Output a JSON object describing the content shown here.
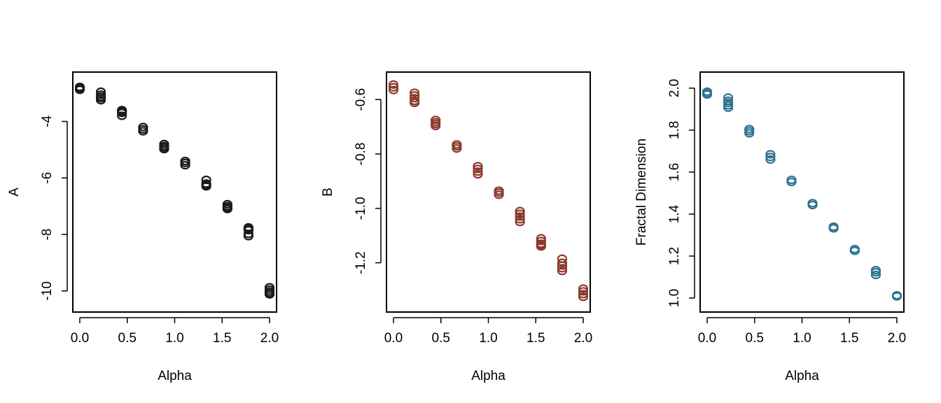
{
  "chart_data": [
    {
      "type": "scatter",
      "xlabel": "Alpha",
      "ylabel": "A",
      "xlim": [
        0,
        2
      ],
      "ylim": [
        -10.4,
        -2.6
      ],
      "xticks": [
        "0.0",
        "0.5",
        "1.0",
        "1.5",
        "2.0"
      ],
      "yticks": [
        "-4",
        "-6",
        "-8",
        "-10"
      ],
      "grid": false,
      "color": "#1a1a1a",
      "series": [
        {
          "x": [
            0,
            0,
            0,
            0.222,
            0.222,
            0.222,
            0.222,
            0.222,
            0.444,
            0.444,
            0.444,
            0.444,
            0.667,
            0.667,
            0.667,
            0.889,
            0.889,
            0.889,
            0.889,
            1.111,
            1.111,
            1.111,
            1.333,
            1.333,
            1.333,
            1.333,
            1.556,
            1.556,
            1.556,
            1.556,
            1.778,
            1.778,
            1.778,
            1.778,
            1.778,
            2,
            2,
            2,
            2,
            2
          ],
          "y": [
            -2.78,
            -2.83,
            -2.88,
            -2.95,
            -3.05,
            -3.12,
            -3.18,
            -3.25,
            -3.6,
            -3.65,
            -3.7,
            -3.8,
            -4.2,
            -4.28,
            -4.35,
            -4.8,
            -4.87,
            -4.92,
            -4.98,
            -5.4,
            -5.47,
            -5.55,
            -6.07,
            -6.2,
            -6.25,
            -6.3,
            -6.93,
            -7.0,
            -7.05,
            -7.1,
            -7.75,
            -7.8,
            -7.85,
            -7.98,
            -8.06,
            -9.87,
            -9.95,
            -10.02,
            -10.08,
            -10.12
          ]
        }
      ]
    },
    {
      "type": "scatter",
      "xlabel": "Alpha",
      "ylabel": "B",
      "xlim": [
        0,
        2
      ],
      "ylim": [
        -1.345,
        -0.535
      ],
      "xticks": [
        "0.0",
        "0.5",
        "1.0",
        "1.5",
        "2.0"
      ],
      "yticks": [
        "-0.6",
        "-0.8",
        "-1.0",
        "-1.2"
      ],
      "grid": false,
      "color": "#8c3a2a",
      "series": [
        {
          "x": [
            0,
            0,
            0,
            0.222,
            0.222,
            0.222,
            0.222,
            0.222,
            0.444,
            0.444,
            0.444,
            0.444,
            0.667,
            0.667,
            0.667,
            0.889,
            0.889,
            0.889,
            0.889,
            1.111,
            1.111,
            1.111,
            1.333,
            1.333,
            1.333,
            1.333,
            1.333,
            1.556,
            1.556,
            1.556,
            1.556,
            1.556,
            1.778,
            1.778,
            1.778,
            1.778,
            1.778,
            2,
            2,
            2,
            2
          ],
          "y": [
            -0.545,
            -0.555,
            -0.565,
            -0.575,
            -0.585,
            -0.595,
            -0.605,
            -0.612,
            -0.675,
            -0.683,
            -0.69,
            -0.697,
            -0.765,
            -0.772,
            -0.78,
            -0.845,
            -0.855,
            -0.865,
            -0.875,
            -0.935,
            -0.942,
            -0.95,
            -1.01,
            -1.02,
            -1.03,
            -1.04,
            -1.05,
            -1.11,
            -1.12,
            -1.13,
            -1.135,
            -1.14,
            -1.185,
            -1.2,
            -1.21,
            -1.22,
            -1.23,
            -1.295,
            -1.305,
            -1.315,
            -1.325
          ]
        }
      ]
    },
    {
      "type": "scatter",
      "xlabel": "Alpha",
      "ylabel": "Fractal Dimension",
      "xlim": [
        0,
        2
      ],
      "ylim": [
        0.98,
        2.03
      ],
      "xticks": [
        "0.0",
        "0.5",
        "1.0",
        "1.5",
        "2.0"
      ],
      "yticks": [
        "1.0",
        "1.2",
        "1.4",
        "1.6",
        "1.8",
        "2.0"
      ],
      "grid": false,
      "color": "#2e7391",
      "series": [
        {
          "x": [
            0,
            0,
            0,
            0.222,
            0.222,
            0.222,
            0.222,
            0.222,
            0.444,
            0.444,
            0.444,
            0.667,
            0.667,
            0.667,
            0.889,
            0.889,
            1.111,
            1.111,
            1.333,
            1.333,
            1.556,
            1.556,
            1.778,
            1.778,
            1.778,
            2,
            2
          ],
          "y": [
            1.983,
            1.975,
            1.97,
            1.955,
            1.94,
            1.93,
            1.918,
            1.907,
            1.805,
            1.795,
            1.785,
            1.685,
            1.672,
            1.66,
            1.563,
            1.553,
            1.452,
            1.443,
            1.34,
            1.332,
            1.233,
            1.225,
            1.133,
            1.123,
            1.11,
            1.013,
            1.008
          ]
        }
      ]
    }
  ]
}
